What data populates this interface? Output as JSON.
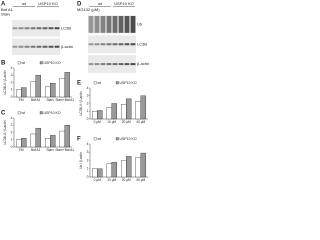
{
  "blots": [
    {
      "panel": "A",
      "groups": [
        "wt",
        "USP10 KO"
      ],
      "rows": [
        "Baf A1",
        "Starv"
      ],
      "bands": [
        "LC3B",
        "β-actin"
      ]
    },
    {
      "panel": "D",
      "groups": [
        "wt",
        "USP10 KO"
      ],
      "rows": [
        "MG132 (μM)"
      ],
      "bands": [
        "Ub",
        "LC3B",
        "β-actin"
      ]
    }
  ],
  "chart_data": [
    {
      "type": "bar",
      "panel": "B",
      "ylabel": "LC3B-II / β-actin",
      "categories": [
        "FM",
        "Baf A1",
        "Starv",
        "Starv+Baf A1"
      ],
      "series": [
        {
          "name": "wt",
          "color": "#ffffff",
          "values": [
            1,
            2.1,
            1.4,
            2.6
          ]
        },
        {
          "name": "USP10 KO",
          "color": "#9a9a9a",
          "values": [
            1.3,
            3,
            1.9,
            3.4
          ]
        }
      ],
      "ylim": [
        0,
        4
      ],
      "yticks": [
        0,
        1,
        2,
        3,
        4
      ]
    },
    {
      "type": "bar",
      "panel": "C",
      "ylabel": "LC3B-II / β-actin",
      "categories": [
        "FM",
        "Baf A1",
        "Starv",
        "Starv+Baf A1"
      ],
      "series": [
        {
          "name": "wt",
          "color": "#ffffff",
          "values": [
            1,
            1.8,
            1.2,
            2.2
          ]
        },
        {
          "name": "USP10 KO",
          "color": "#9a9a9a",
          "values": [
            1.2,
            2.6,
            1.6,
            3
          ]
        }
      ],
      "ylim": [
        0,
        4
      ],
      "yticks": [
        0,
        1,
        2,
        3,
        4
      ]
    },
    {
      "type": "bar",
      "panel": "E",
      "ylabel": "LC3B-II / β-actin",
      "categories": [
        "0 μM",
        "10 μM",
        "20 μM",
        "40 μM"
      ],
      "series": [
        {
          "name": "wt",
          "color": "#ffffff",
          "values": [
            1,
            1.5,
            1.9,
            2.3
          ]
        },
        {
          "name": "USP10 KO",
          "color": "#9a9a9a",
          "values": [
            1.1,
            2,
            2.6,
            3
          ]
        }
      ],
      "ylim": [
        0,
        4
      ],
      "yticks": [
        0,
        1,
        2,
        3,
        4
      ]
    },
    {
      "type": "bar",
      "panel": "F",
      "ylabel": "Ub / β-actin",
      "categories": [
        "0 μM",
        "10 μM",
        "20 μM",
        "40 μM"
      ],
      "series": [
        {
          "name": "wt",
          "color": "#ffffff",
          "values": [
            1,
            1.6,
            2,
            2.4
          ]
        },
        {
          "name": "USP10 KO",
          "color": "#9a9a9a",
          "values": [
            1,
            1.8,
            2.5,
            2.9
          ]
        }
      ],
      "ylim": [
        0,
        4
      ],
      "yticks": [
        0,
        1,
        2,
        3,
        4
      ]
    }
  ]
}
